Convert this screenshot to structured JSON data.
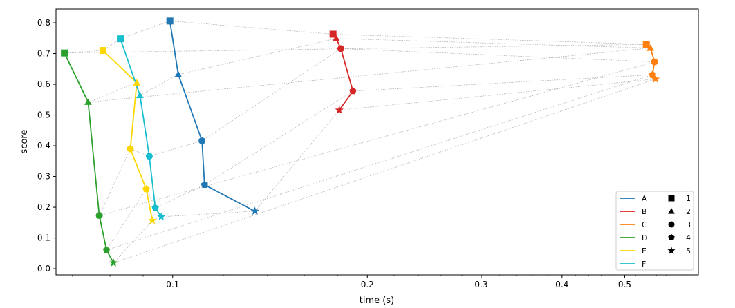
{
  "chart_data": {
    "type": "line",
    "title": "",
    "xlabel": "time (s)",
    "ylabel": "score",
    "xscale": "log",
    "xlim": [
      0.066,
      0.65
    ],
    "ylim": [
      -0.02,
      0.845
    ],
    "x_ticks": [
      {
        "value": 0.1,
        "label": "0.1"
      },
      {
        "value": 0.2,
        "label": "0.2"
      },
      {
        "value": 0.3,
        "label": "0.3"
      },
      {
        "value": 0.4,
        "label": "0.4"
      },
      {
        "value": 0.5,
        "label": "0.5"
      }
    ],
    "y_ticks": [
      {
        "value": 0.0,
        "label": "0.0"
      },
      {
        "value": 0.1,
        "label": "0.1"
      },
      {
        "value": 0.2,
        "label": "0.2"
      },
      {
        "value": 0.3,
        "label": "0.3"
      },
      {
        "value": 0.4,
        "label": "0.4"
      },
      {
        "value": 0.5,
        "label": "0.5"
      },
      {
        "value": 0.6,
        "label": "0.6"
      },
      {
        "value": 0.7,
        "label": "0.7"
      },
      {
        "value": 0.8,
        "label": "0.8"
      }
    ],
    "grid": false,
    "legend_position": "bottom-right",
    "markers": [
      {
        "label": "1",
        "shape": "square"
      },
      {
        "label": "2",
        "shape": "triangle"
      },
      {
        "label": "3",
        "shape": "circle"
      },
      {
        "label": "4",
        "shape": "pentagon"
      },
      {
        "label": "5",
        "shape": "star"
      }
    ],
    "series": [
      {
        "name": "A",
        "color": "#1f77b4",
        "x": [
          0.099,
          0.102,
          0.111,
          0.112,
          0.134
        ],
        "y": [
          0.806,
          0.632,
          0.416,
          0.273,
          0.187
        ]
      },
      {
        "name": "B",
        "color": "#d62728",
        "x": [
          0.177,
          0.179,
          0.182,
          0.19,
          0.181
        ],
        "y": [
          0.763,
          0.749,
          0.716,
          0.578,
          0.516
        ]
      },
      {
        "name": "C",
        "color": "#ff7f0e",
        "x": [
          0.54,
          0.548,
          0.556,
          0.552,
          0.558
        ],
        "y": [
          0.73,
          0.718,
          0.673,
          0.631,
          0.617
        ]
      },
      {
        "name": "D",
        "color": "#2ca02c",
        "x": [
          0.068,
          0.074,
          0.077,
          0.079,
          0.081
        ],
        "y": [
          0.702,
          0.542,
          0.173,
          0.061,
          0.019
        ]
      },
      {
        "name": "E",
        "color": "#ffd700",
        "x": [
          0.078,
          0.088,
          0.086,
          0.091,
          0.093
        ],
        "y": [
          0.71,
          0.605,
          0.39,
          0.259,
          0.157
        ]
      },
      {
        "name": "F",
        "color": "#17becf",
        "x": [
          0.083,
          0.089,
          0.092,
          0.094,
          0.096
        ],
        "y": [
          0.748,
          0.564,
          0.366,
          0.198,
          0.169
        ]
      }
    ],
    "connector_lines": {
      "style": "dotted",
      "color": "#a0a0a0",
      "by_marker": true
    }
  }
}
